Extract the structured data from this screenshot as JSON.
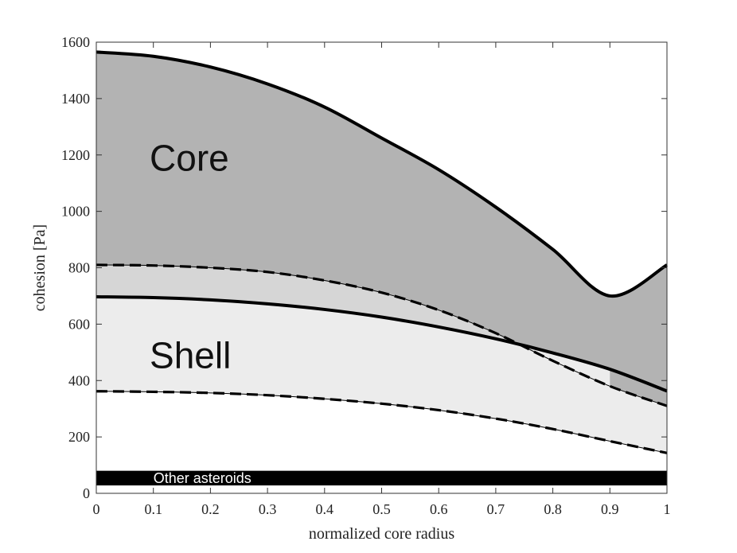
{
  "chart_data": {
    "type": "area",
    "xlabel": "normalized core radius",
    "ylabel": "cohesion [Pa]",
    "xlim": [
      0,
      1
    ],
    "ylim": [
      0,
      1600
    ],
    "xticks": [
      0,
      0.1,
      0.2,
      0.3,
      0.4,
      0.5,
      0.6,
      0.7,
      0.8,
      0.9,
      1
    ],
    "xtick_labels": [
      "0",
      "0.1",
      "0.2",
      "0.3",
      "0.4",
      "0.5",
      "0.6",
      "0.7",
      "0.8",
      "0.9",
      "1"
    ],
    "yticks": [
      0,
      200,
      400,
      600,
      800,
      1000,
      1200,
      1400,
      1600
    ],
    "ytick_labels": [
      "0",
      "200",
      "400",
      "600",
      "800",
      "1000",
      "1200",
      "1400",
      "1600"
    ],
    "x": [
      0,
      0.1,
      0.2,
      0.3,
      0.4,
      0.5,
      0.6,
      0.7,
      0.8,
      0.9,
      1.0
    ],
    "series": [
      {
        "name": "core_upper",
        "style": "solid",
        "values": [
          1565,
          1550,
          1512,
          1452,
          1370,
          1260,
          1148,
          1015,
          865,
          700,
          810
        ]
      },
      {
        "name": "core_lower",
        "style": "dashed",
        "values": [
          810,
          808,
          800,
          785,
          755,
          712,
          650,
          568,
          470,
          380,
          310
        ]
      },
      {
        "name": "shell_upper",
        "style": "solid",
        "values": [
          697,
          694,
          686,
          672,
          652,
          625,
          590,
          548,
          498,
          440,
          363
        ]
      },
      {
        "name": "shell_lower",
        "style": "dashed",
        "values": [
          362,
          360,
          356,
          348,
          335,
          318,
          295,
          265,
          228,
          185,
          143
        ]
      }
    ],
    "band": {
      "label": "Other asteroids",
      "range": [
        28,
        80
      ]
    },
    "annotations": [
      {
        "text": "Core",
        "x": 0.18,
        "y": 1190
      },
      {
        "text": "Shell",
        "x": 0.18,
        "y": 490
      }
    ],
    "colors": {
      "core_fill": "#b3b3b3",
      "overlap_fill": "#d6d6d6",
      "shell_fill": "#ececec",
      "band_fill": "#000000",
      "line": "#000000"
    }
  }
}
